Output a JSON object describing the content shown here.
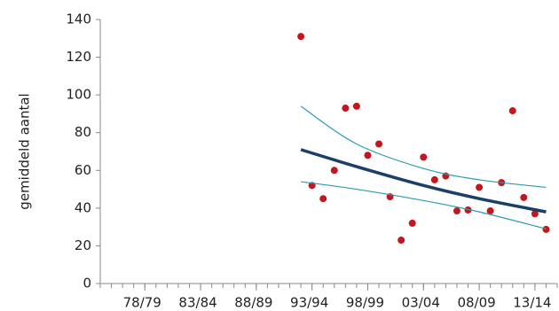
{
  "chart_data": {
    "type": "scatter",
    "y_label": "gemiddeld aantal",
    "xlim": [
      1974,
      2015
    ],
    "ylim": [
      0,
      140
    ],
    "yticks": [
      0,
      20,
      40,
      60,
      80,
      100,
      120,
      140
    ],
    "xticks": [
      {
        "value": 1978,
        "label": "78/79"
      },
      {
        "value": 1983,
        "label": "83/84"
      },
      {
        "value": 1988,
        "label": "88/89"
      },
      {
        "value": 1993,
        "label": "93/94"
      },
      {
        "value": 1998,
        "label": "98/99"
      },
      {
        "value": 2003,
        "label": "03/04"
      },
      {
        "value": 2008,
        "label": "08/09"
      },
      {
        "value": 2013,
        "label": "13/14"
      }
    ],
    "xminorticks": [
      1974,
      1975,
      1976,
      1977,
      1978,
      1979,
      1980,
      1981,
      1982,
      1983,
      1984,
      1985,
      1986,
      1987,
      1988,
      1989,
      1990,
      1991,
      1992,
      1993,
      1994,
      1995,
      1996,
      1997,
      1998,
      1999,
      2000,
      2001,
      2002,
      2003,
      2004,
      2005,
      2006,
      2007,
      2008,
      2009,
      2010,
      2011,
      2012,
      2013,
      2014,
      2015
    ],
    "series": [
      {
        "style": "points",
        "color": "#c5161d",
        "x": [
          1992,
          1993,
          1994,
          1995,
          1996,
          1997,
          1998,
          1999,
          2000,
          2001,
          2002,
          2003,
          2004,
          2005,
          2006,
          2007,
          2008,
          2009,
          2010,
          2011,
          2012,
          2013,
          2014
        ],
        "values": [
          131,
          52,
          45,
          60,
          93,
          94,
          68,
          74,
          46,
          23,
          32,
          67,
          55,
          57,
          38.5,
          39,
          51,
          38.5,
          53.5,
          91.6,
          45.6,
          37,
          28.7
        ]
      },
      {
        "style": "line",
        "color": "#2e9bb5",
        "width": 1.2,
        "x": [
          1992,
          1997,
          2003,
          2008,
          2014
        ],
        "values": [
          94,
          74,
          61,
          55,
          51
        ]
      },
      {
        "style": "line",
        "color": "#2e9bb5",
        "width": 1.2,
        "x": [
          1992,
          1997,
          2003,
          2008,
          2014
        ],
        "values": [
          54,
          50,
          44,
          38,
          29
        ]
      },
      {
        "style": "line",
        "color": "#1b3f6b",
        "width": 3.5,
        "x": [
          1992,
          1997,
          2003,
          2008,
          2014
        ],
        "values": [
          71,
          62,
          52,
          45,
          38
        ]
      }
    ]
  }
}
